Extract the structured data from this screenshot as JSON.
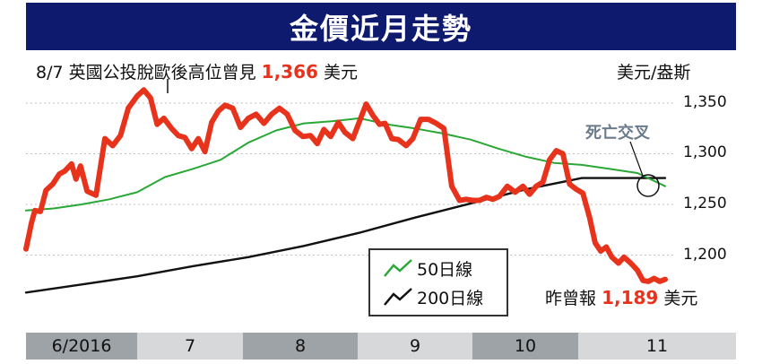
{
  "header": {
    "title": "金價近月走勢"
  },
  "annotations": {
    "peak_note_prefix": "8/7 英國公投脫歐後高位曾見",
    "peak_note_value": "1,366",
    "peak_note_suffix": "美元",
    "unit": "美元/盎斯",
    "cross_label": "死亡交叉",
    "latest_prefix": "昨曾報",
    "latest_value": "1,189",
    "latest_suffix": "美元"
  },
  "colors": {
    "gold": "#e8331c",
    "ma50": "#2aa836",
    "ma200": "#111111",
    "title_bg": "#0d1a6e",
    "band_dark": "#9ea3a8",
    "band_light": "#d6d8da",
    "grid": "#bfbfbf",
    "cross": "#6b7b8c"
  },
  "chart_data": {
    "type": "line",
    "title": "金價近月走勢",
    "ylabel": "美元/盎斯",
    "ylim": [
      1172,
      1366
    ],
    "yticks": [
      1350,
      1300,
      1250,
      1200
    ],
    "ytick_labels": [
      "1,350",
      "1,300",
      "1,250",
      "1,200"
    ],
    "xlim": [
      0,
      6
    ],
    "x_segments": [
      "6/2016",
      "7",
      "8",
      "9",
      "10",
      "11"
    ],
    "grid": true,
    "legend": "bottom-center",
    "series": [
      {
        "name": "金價",
        "color": "#e8331c",
        "x": [
          0.0,
          0.05,
          0.08,
          0.13,
          0.18,
          0.24,
          0.3,
          0.35,
          0.41,
          0.45,
          0.49,
          0.55,
          0.63,
          0.71,
          0.78,
          0.85,
          0.92,
          1.0,
          1.06,
          1.12,
          1.18,
          1.24,
          1.31,
          1.37,
          1.43,
          1.49,
          1.55,
          1.61,
          1.67,
          1.73,
          1.79,
          1.86,
          1.93,
          2.0,
          2.07,
          2.14,
          2.21,
          2.28,
          2.35,
          2.42,
          2.49,
          2.56,
          2.62,
          2.68,
          2.74,
          2.81,
          2.87,
          2.94,
          3.0,
          3.06,
          3.12,
          3.18,
          3.23,
          3.29,
          3.35,
          3.42,
          3.48,
          3.55,
          3.62,
          3.69,
          3.76,
          3.83,
          3.9,
          3.96,
          4.02,
          4.08,
          4.14,
          4.2,
          4.26,
          4.33,
          4.4,
          4.47,
          4.53,
          4.59,
          4.65,
          4.71,
          4.77,
          4.83,
          4.89,
          4.95,
          5.01,
          5.07,
          5.12,
          5.17,
          5.22,
          5.27,
          5.33,
          5.38,
          5.44,
          5.5,
          5.55,
          5.6,
          5.65,
          5.7,
          5.75
        ],
        "values": [
          1206,
          1232,
          1244,
          1243,
          1264,
          1270,
          1280,
          1283,
          1290,
          1275,
          1288,
          1263,
          1259,
          1315,
          1308,
          1318,
          1345,
          1357,
          1363,
          1355,
          1329,
          1335,
          1325,
          1318,
          1316,
          1305,
          1315,
          1302,
          1331,
          1342,
          1348,
          1345,
          1326,
          1335,
          1339,
          1330,
          1339,
          1345,
          1339,
          1323,
          1317,
          1318,
          1310,
          1324,
          1317,
          1331,
          1321,
          1315,
          1332,
          1349,
          1338,
          1329,
          1330,
          1315,
          1314,
          1308,
          1315,
          1334,
          1334,
          1330,
          1325,
          1268,
          1254,
          1255,
          1254,
          1254,
          1257,
          1255,
          1258,
          1268,
          1262,
          1268,
          1260,
          1268,
          1272,
          1294,
          1303,
          1300,
          1270,
          1265,
          1261,
          1237,
          1212,
          1204,
          1208,
          1198,
          1192,
          1198,
          1192,
          1185,
          1175,
          1174,
          1177,
          1174,
          1176
        ]
      },
      {
        "name": "50日線",
        "color": "#2aa836",
        "x": [
          0.0,
          0.25,
          0.5,
          0.75,
          1.0,
          1.25,
          1.5,
          1.75,
          2.0,
          2.25,
          2.5,
          2.75,
          3.0,
          3.25,
          3.5,
          3.75,
          4.0,
          4.25,
          4.5,
          4.75,
          5.0,
          5.25,
          5.5,
          5.75
        ],
        "values": [
          1244,
          1246,
          1250,
          1255,
          1262,
          1277,
          1285,
          1294,
          1311,
          1323,
          1330,
          1332,
          1335,
          1329,
          1325,
          1320,
          1314,
          1305,
          1297,
          1291,
          1289,
          1285,
          1281,
          1268
        ]
      },
      {
        "name": "200日線",
        "color": "#111111",
        "x": [
          0.0,
          0.5,
          1.0,
          1.5,
          2.0,
          2.5,
          3.0,
          3.5,
          4.0,
          4.5,
          5.0,
          5.25,
          5.5,
          5.75
        ],
        "values": [
          1163,
          1171,
          1179,
          1189,
          1198,
          1209,
          1222,
          1237,
          1251,
          1265,
          1276,
          1276,
          1276,
          1276
        ]
      }
    ]
  }
}
